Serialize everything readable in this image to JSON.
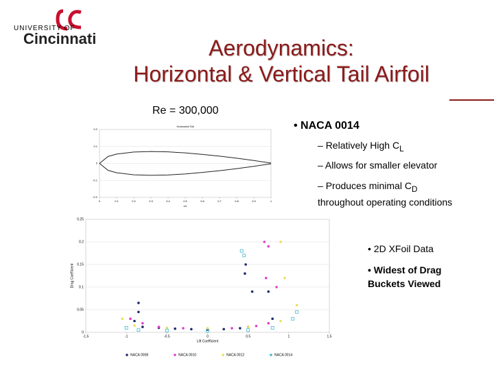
{
  "logo": {
    "top": "UNIVERSITY OF",
    "name": "Cincinnati"
  },
  "title": {
    "line1": "Aerodynamics:",
    "line2": "Horizontal & Vertical Tail Airfoil"
  },
  "reynolds": "Re = 300,000",
  "bullets": {
    "main": "• NACA 0014",
    "sub1": {
      "dash": "–",
      "text": "Relatively High C",
      "sub": "L"
    },
    "sub2": {
      "dash": "–",
      "text": "Allows for smaller elevator"
    },
    "sub3": {
      "dash": "–",
      "text": "Produces minimal C",
      "sub": "D",
      "rest": "throughout operating conditions"
    },
    "note1": "• 2D XFoil Data",
    "note2": "• Widest of Drag Buckets Viewed"
  },
  "chart_data": [
    {
      "type": "line",
      "title": "Horizontal Tail",
      "x_label": "x/c",
      "x": [
        0,
        0.05,
        0.1,
        0.2,
        0.3,
        0.4,
        0.5,
        0.6,
        0.7,
        0.8,
        0.9,
        1
      ],
      "series": [
        {
          "color": "#222222",
          "values": [
            0,
            0.041,
            0.055,
            0.067,
            0.07,
            0.068,
            0.062,
            0.053,
            0.043,
            0.031,
            0.017,
            0.002
          ]
        },
        {
          "color": "#222222",
          "values": [
            0,
            -0.041,
            -0.055,
            -0.067,
            -0.07,
            -0.068,
            -0.062,
            -0.053,
            -0.043,
            -0.031,
            -0.017,
            -0.002
          ]
        }
      ],
      "xlim": [
        0,
        1
      ],
      "xticks": [
        0,
        0.1,
        0.2,
        0.3,
        0.4,
        0.5,
        0.6,
        0.7,
        0.8,
        0.9,
        1
      ],
      "ylim": [
        -0.2,
        0.2
      ],
      "yticks": [
        -0.2,
        -0.1,
        0,
        0.1,
        0.2
      ],
      "grid": true
    },
    {
      "type": "scatter",
      "x_label": "Lift Coefficient",
      "y_label": "Drag Coefficient",
      "series": [
        {
          "name": "NACA 0008",
          "color": "#1f2a6e",
          "x": [
            -0.85,
            -0.85,
            -0.9,
            -0.8,
            -0.6,
            -0.4,
            -0.2,
            0,
            0.2,
            0.4,
            0.5,
            0.46,
            0.47,
            0.55,
            0.75,
            0.8
          ],
          "values": [
            0.065,
            0.045,
            0.025,
            0.012,
            0.01,
            0.008,
            0.007,
            0.006,
            0.007,
            0.009,
            0.012,
            0.13,
            0.15,
            0.09,
            0.09,
            0.03
          ]
        },
        {
          "name": "NACA 0010",
          "color": "#e040c8",
          "x": [
            -0.95,
            -0.8,
            -0.6,
            -0.3,
            0,
            0.3,
            0.6,
            0.75,
            0.72,
            0.7,
            0.75,
            0.85
          ],
          "values": [
            0.03,
            0.02,
            0.012,
            0.009,
            0.008,
            0.009,
            0.014,
            0.02,
            0.12,
            0.2,
            0.19,
            0.1
          ]
        },
        {
          "name": "NACA 0012",
          "color": "#e8e060",
          "x": [
            -1.05,
            -0.9,
            -0.5,
            0,
            0.5,
            0.9,
            1.1,
            0.95,
            0.9
          ],
          "values": [
            0.03,
            0.015,
            0.01,
            0.009,
            0.012,
            0.025,
            0.06,
            0.12,
            0.2
          ]
        },
        {
          "name": "NACA 0014",
          "color": "#3fb8d0",
          "x": [
            -1.0,
            -0.85,
            -0.5,
            0,
            0.5,
            0.8,
            1.05,
            1.1,
            0.45,
            0.42
          ],
          "values": [
            0.01,
            0.005,
            0.004,
            0.003,
            0.005,
            0.01,
            0.03,
            0.045,
            0.17,
            0.18
          ]
        }
      ],
      "xlim": [
        -1.5,
        1.5
      ],
      "xticks": [
        -1.5,
        -1,
        -0.5,
        0,
        0.5,
        1,
        1.5
      ],
      "ylim": [
        0,
        0.25
      ],
      "yticks": [
        0,
        0.05,
        0.1,
        0.15,
        0.2,
        0.25
      ],
      "grid": true
    }
  ]
}
